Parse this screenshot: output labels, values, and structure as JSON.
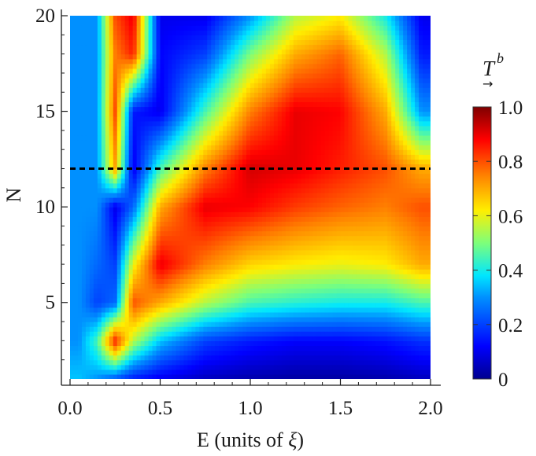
{
  "chart_data": {
    "type": "heatmap",
    "xlabel": "E (units of ",
    "xlabel_symbol": "ξ",
    "xlabel_close": ")",
    "ylabel": "N",
    "xlim": [
      0.0,
      2.0
    ],
    "ylim": [
      1,
      20
    ],
    "x_ticks": [
      "0.0",
      "0.5",
      "1.0",
      "1.5",
      "2.0"
    ],
    "x_tick_values": [
      0.0,
      0.5,
      1.0,
      1.5,
      2.0
    ],
    "y_ticks": [
      "5",
      "10",
      "15",
      "20"
    ],
    "y_tick_values": [
      5,
      10,
      15,
      20
    ],
    "reference_line": {
      "y": 12,
      "style": "dashed",
      "color": "#000000"
    },
    "colorbar": {
      "title": "T",
      "superscript": "b",
      "subscript_arrow": "→",
      "min": 0,
      "max": 1,
      "ticks": [
        "0",
        "0.2",
        "0.4",
        "0.6",
        "0.8",
        "1.0"
      ],
      "tick_values": [
        0,
        0.2,
        0.4,
        0.6,
        0.8,
        1.0
      ],
      "colormap": "jet"
    },
    "x_samples": [
      0.05,
      0.15,
      0.25,
      0.35,
      0.5,
      0.75,
      1.0,
      1.25,
      1.5,
      1.75,
      1.95
    ],
    "rows": [
      {
        "N": 1,
        "values": [
          0.35,
          0.3,
          0.22,
          0.15,
          0.1,
          0.05,
          0.03,
          0.02,
          0.02,
          0.03,
          0.05
        ]
      },
      {
        "N": 3,
        "values": [
          0.3,
          0.45,
          0.85,
          0.55,
          0.35,
          0.2,
          0.15,
          0.12,
          0.12,
          0.14,
          0.18
        ]
      },
      {
        "N": 5,
        "values": [
          0.3,
          0.2,
          0.25,
          0.8,
          0.7,
          0.55,
          0.45,
          0.42,
          0.4,
          0.4,
          0.45
        ]
      },
      {
        "N": 7,
        "values": [
          0.3,
          0.25,
          0.2,
          0.6,
          0.9,
          0.75,
          0.65,
          0.62,
          0.6,
          0.62,
          0.7
        ]
      },
      {
        "N": 10,
        "values": [
          0.3,
          0.3,
          0.1,
          0.25,
          0.7,
          0.9,
          0.88,
          0.82,
          0.78,
          0.75,
          0.8
        ]
      },
      {
        "N": 12,
        "values": [
          0.3,
          0.3,
          0.7,
          0.1,
          0.45,
          0.75,
          0.92,
          0.9,
          0.85,
          0.8,
          0.7
        ]
      },
      {
        "N": 15,
        "values": [
          0.3,
          0.3,
          0.8,
          0.15,
          0.1,
          0.45,
          0.75,
          0.9,
          0.88,
          0.7,
          0.3
        ]
      },
      {
        "N": 18,
        "values": [
          0.3,
          0.3,
          0.75,
          0.85,
          0.12,
          0.2,
          0.5,
          0.7,
          0.78,
          0.55,
          0.15
        ]
      },
      {
        "N": 20,
        "values": [
          0.3,
          0.3,
          0.8,
          0.9,
          0.1,
          0.1,
          0.3,
          0.55,
          0.62,
          0.4,
          0.1
        ]
      }
    ]
  }
}
